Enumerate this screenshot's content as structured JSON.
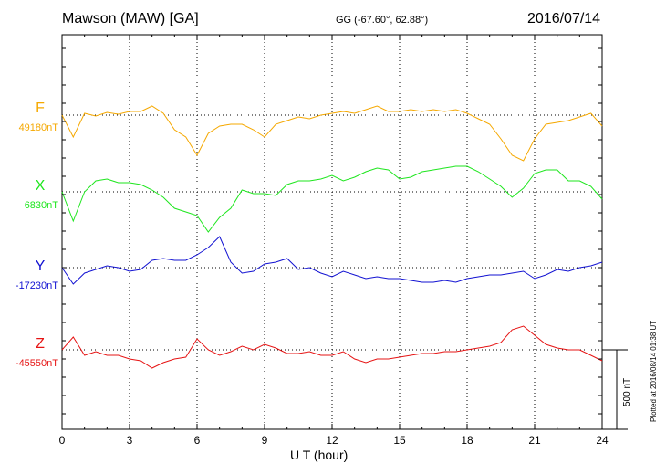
{
  "header": {
    "station": "Mawson (MAW)  [GA]",
    "coordinates": "GG (-67.60°,  62.88°)",
    "date": "2016/07/14"
  },
  "footer": {
    "plotted_note": "Plotted at 2016/08/14 01:38 UT"
  },
  "colors": {
    "F": "#f5a800",
    "X": "#1ee61e",
    "Y": "#1212d2",
    "Z": "#e61414",
    "grid": "#000000"
  },
  "chart_data": {
    "type": "line",
    "title": "Mawson (MAW)  [GA]",
    "xlabel": "U T (hour)",
    "xlim": [
      0,
      24
    ],
    "x_ticks": [
      0,
      3,
      6,
      9,
      12,
      15,
      18,
      21,
      24
    ],
    "grid": true,
    "scale_bar": {
      "label": "500 nT",
      "value_nT": 500
    },
    "x": [
      0,
      0.5,
      1,
      1.5,
      2,
      2.5,
      3,
      3.5,
      4,
      4.5,
      5,
      5.5,
      6,
      6.5,
      7,
      7.5,
      8,
      8.5,
      9,
      9.5,
      10,
      10.5,
      11,
      11.5,
      12,
      12.5,
      13,
      13.5,
      14,
      14.5,
      15,
      15.5,
      16,
      16.5,
      17,
      17.5,
      18,
      18.5,
      19,
      19.5,
      20,
      20.5,
      21,
      21.5,
      22,
      22.5,
      23,
      23.5,
      24
    ],
    "series": [
      {
        "name": "F",
        "baseline_label": "49180nT",
        "color": "#f5a800",
        "values": [
          49180,
          49060,
          49190,
          49175,
          49195,
          49185,
          49200,
          49200,
          49230,
          49190,
          49100,
          49060,
          48960,
          49080,
          49120,
          49130,
          49130,
          49100,
          49060,
          49130,
          49150,
          49170,
          49160,
          49180,
          49190,
          49200,
          49190,
          49210,
          49230,
          49200,
          49200,
          49210,
          49200,
          49210,
          49200,
          49210,
          49190,
          49160,
          49130,
          49050,
          48960,
          48930,
          49050,
          49130,
          49140,
          49150,
          49170,
          49190,
          49120
        ]
      },
      {
        "name": "X",
        "baseline_label": "6830nT",
        "color": "#1ee61e",
        "values": [
          6830,
          6670,
          6830,
          6890,
          6900,
          6880,
          6880,
          6870,
          6840,
          6800,
          6740,
          6720,
          6700,
          6610,
          6690,
          6740,
          6840,
          6820,
          6820,
          6810,
          6870,
          6890,
          6890,
          6900,
          6920,
          6890,
          6910,
          6940,
          6960,
          6950,
          6900,
          6910,
          6940,
          6950,
          6960,
          6970,
          6970,
          6940,
          6900,
          6860,
          6800,
          6850,
          6930,
          6950,
          6950,
          6890,
          6890,
          6860,
          6790
        ]
      },
      {
        "name": "Y",
        "baseline_label": "-17230nT",
        "color": "#1212d2",
        "values": [
          -17230,
          -17320,
          -17260,
          -17240,
          -17220,
          -17230,
          -17250,
          -17240,
          -17190,
          -17180,
          -17190,
          -17190,
          -17160,
          -17120,
          -17060,
          -17200,
          -17260,
          -17250,
          -17210,
          -17200,
          -17180,
          -17240,
          -17230,
          -17260,
          -17280,
          -17250,
          -17270,
          -17290,
          -17280,
          -17290,
          -17290,
          -17300,
          -17310,
          -17310,
          -17300,
          -17310,
          -17290,
          -17280,
          -17270,
          -17270,
          -17260,
          -17250,
          -17290,
          -17270,
          -17240,
          -17250,
          -17230,
          -17220,
          -17200
        ]
      },
      {
        "name": "Z",
        "baseline_label": "-45550nT",
        "color": "#e61414",
        "values": [
          -45550,
          -45480,
          -45580,
          -45560,
          -45580,
          -45580,
          -45600,
          -45610,
          -45650,
          -45620,
          -45600,
          -45590,
          -45490,
          -45550,
          -45580,
          -45560,
          -45530,
          -45550,
          -45520,
          -45540,
          -45570,
          -45570,
          -45560,
          -45580,
          -45580,
          -45560,
          -45600,
          -45620,
          -45600,
          -45600,
          -45590,
          -45580,
          -45570,
          -45570,
          -45560,
          -45560,
          -45550,
          -45540,
          -45530,
          -45510,
          -45440,
          -45420,
          -45470,
          -45520,
          -45540,
          -45550,
          -45550,
          -45580,
          -45610
        ]
      }
    ]
  }
}
